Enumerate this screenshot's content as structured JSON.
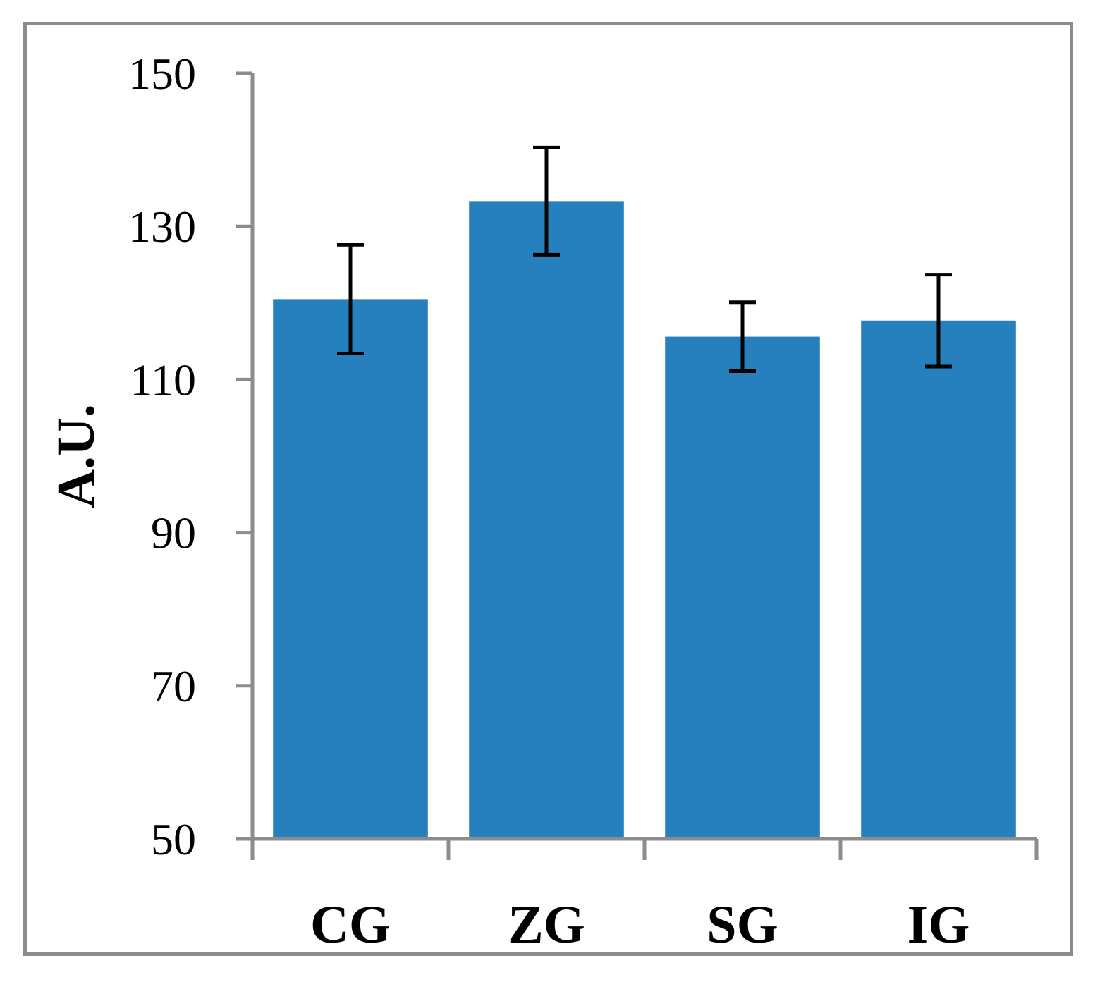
{
  "chart_data": {
    "type": "bar",
    "categories": [
      "CG",
      "ZG",
      "SG",
      "IG"
    ],
    "values": [
      120.5,
      133.3,
      115.6,
      117.7
    ],
    "error": [
      7.1,
      7.0,
      4.5,
      6.0
    ],
    "xlabel": "",
    "ylabel": "A.U.",
    "ylim": [
      50,
      150
    ],
    "yticks": [
      50,
      70,
      90,
      110,
      130,
      150
    ],
    "grid": false,
    "legend": "none",
    "colors": {
      "bar": "#2680be",
      "axis": "#8c8c8c",
      "error_bar": "#000000",
      "frame": "#8c8c8c"
    }
  }
}
